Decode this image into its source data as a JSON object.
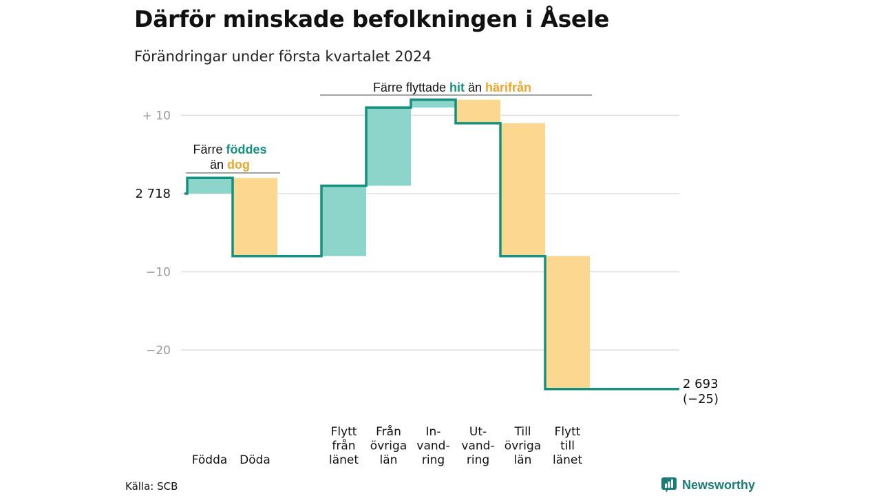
{
  "title": "Därför minskade befolkningen i Åsele",
  "subtitle": "Förändringar under första kvartalet 2024",
  "source": "Källa: SCB",
  "brand": "Newsworthy",
  "colors": {
    "line": "#14907f",
    "increase": "#8dd4cb",
    "decrease": "#fcd790",
    "grid": "#dddddd",
    "tick_text": "#999999",
    "teal_text": "#14907f",
    "orange_text": "#f0a52a"
  },
  "chart_data": {
    "type": "waterfall",
    "start_label": "2 718",
    "end_label_value": "2 693",
    "end_label_change": "(−25)",
    "ylim": [
      -27,
      13
    ],
    "y_ticks": [
      {
        "value": 10,
        "label": "+  10"
      },
      {
        "value": 0,
        "label": ""
      },
      {
        "value": -10,
        "label": "−10"
      },
      {
        "value": -20,
        "label": "−20"
      }
    ],
    "steps": [
      {
        "label": [
          "Födda"
        ],
        "start": 0,
        "end": 2,
        "kind": "increase"
      },
      {
        "label": [
          "Döda"
        ],
        "start": 2,
        "end": -8,
        "kind": "decrease"
      },
      {
        "label": [
          "Flytt",
          "från",
          "länet"
        ],
        "start": -8,
        "end": 1,
        "kind": "increase"
      },
      {
        "label": [
          "Från",
          "övriga",
          "län"
        ],
        "start": 1,
        "end": 11,
        "kind": "increase"
      },
      {
        "label": [
          "In-",
          "vand-",
          "ring"
        ],
        "start": 11,
        "end": 12,
        "kind": "increase"
      },
      {
        "label": [
          "Ut-",
          "vand-",
          "ring"
        ],
        "start": 12,
        "end": 9,
        "kind": "decrease"
      },
      {
        "label": [
          "Till",
          "övriga",
          "län"
        ],
        "start": 9,
        "end": -8,
        "kind": "decrease"
      },
      {
        "label": [
          "Flytt",
          "till",
          "länet"
        ],
        "start": -8,
        "end": -25,
        "kind": "decrease"
      }
    ],
    "annotations": {
      "natural": {
        "lines": [
          [
            "Färre ",
            "föddes"
          ],
          [
            "än ",
            "dog"
          ]
        ]
      },
      "migration": {
        "parts": [
          "Färre flyttade ",
          "hit",
          " än ",
          "härifrån"
        ]
      }
    }
  }
}
